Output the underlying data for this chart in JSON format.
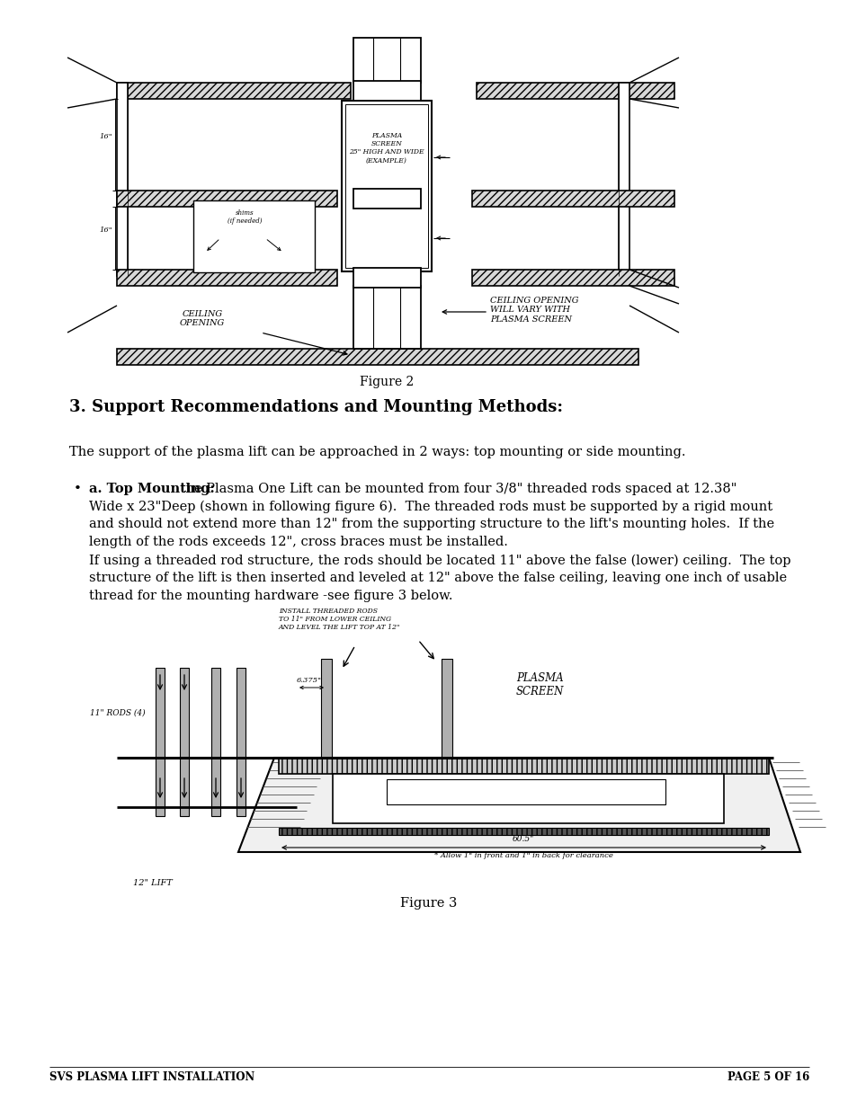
{
  "page_bg": "#ffffff",
  "figure2_caption": "Figure 2",
  "section_title": "3. Support Recommendations and Mounting Methods:",
  "body_text1": "The support of the plasma lift can be approached in 2 ways: top mounting or side mounting.",
  "bullet_label": "•",
  "bullet_bold": "a. Top Mounting:",
  "bullet_text1a": " the Plasma One Lift can be mounted from four 3/8\" threaded rods spaced at 12.38\"",
  "bullet_text1b": "Wide x 23\"Deep (shown in following figure 6).  The threaded rods must be supported by a rigid mount",
  "bullet_text1c": "and should not extend more than 12\" from the supporting structure to the lift's mounting holes.  If the",
  "bullet_text1d": "length of the rods exceeds 12\", cross braces must be installed.",
  "bullet_text2a": "If using a threaded rod structure, the rods should be located 11\" above the false (lower) ceiling.  The top",
  "bullet_text2b": "structure of the lift is then inserted and leveled at 12\" above the false ceiling, leaving one inch of usable",
  "bullet_text2c": "thread for the mounting hardware -see figure 3 below.",
  "fig3_note1": "INSTALL THREADED RODS",
  "fig3_note2": "TO 11\" FROM LOWER CEILING",
  "fig3_note3": "AND LEVEL THE LIFT TOP AT 12\"",
  "fig3_rods_label": "11\" RODS (4)",
  "fig3_dim_label": "6.375\"",
  "fig3_plasma_label": "PLASMA\nSCREEN",
  "fig3_dim2": "60.5\"",
  "fig3_clearance": "* Allow 1\" in front and 1\" in back for clearance",
  "fig3_lift_label": "12\" LIFT",
  "figure3_caption": "Figure 3",
  "footer_left": "SVS PLASMA LIFT INSTALLATION",
  "footer_right": "PAGE 5 OF 16",
  "fig2_ceiling_open1": "CEILING\nOPENING",
  "fig2_ceiling_open2": "CEILING OPENING\nWILL VARY WITH\nPLASMA SCREEN",
  "fig2_plasma_text": "PLASMA\nSCREEN\n25\" HIGH AND WIDE\n(EXAMPLE)",
  "fig2_shims": "shims\n(if needed)",
  "fig2_16a": "16\"",
  "fig2_16b": "16\""
}
